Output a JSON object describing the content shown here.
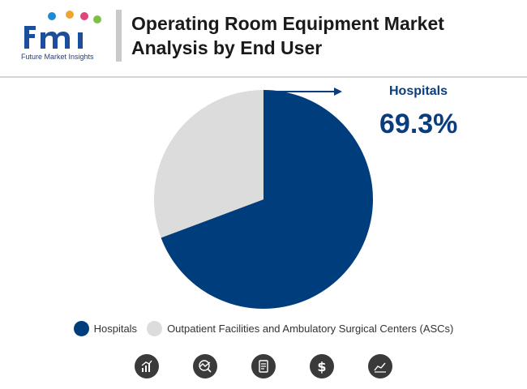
{
  "header": {
    "logo_text": "fmi",
    "logo_subtitle": "Future Market Insights",
    "title": "Operating Room Equipment Market Analysis by End User"
  },
  "colors": {
    "hospitals": "#003d7c",
    "outpatient": "#dcdcdc",
    "accent_text": "#0a3d7e"
  },
  "callout": {
    "label": "Hospitals",
    "value": "69.3%"
  },
  "chart_data": {
    "type": "pie",
    "title": "Operating Room Equipment Market Analysis by End User",
    "slices": [
      {
        "label": "Hospitals",
        "value": 69.3,
        "color": "#003d7c"
      },
      {
        "label": "Outpatient Facilities and Ambulatory Surgical Centers (ASCs)",
        "value": 30.7,
        "color": "#dcdcdc"
      }
    ],
    "legend_position": "bottom"
  },
  "legend": {
    "items": [
      {
        "label": "Hospitals",
        "color": "#003d7c"
      },
      {
        "label": "Outpatient Facilities and Ambulatory Surgical Centers (ASCs)",
        "color": "#dcdcdc"
      }
    ]
  },
  "footer_icons": [
    "bar-chart-icon",
    "globe-trend-icon",
    "document-report-icon",
    "dollar-icon",
    "line-chart-icon"
  ]
}
